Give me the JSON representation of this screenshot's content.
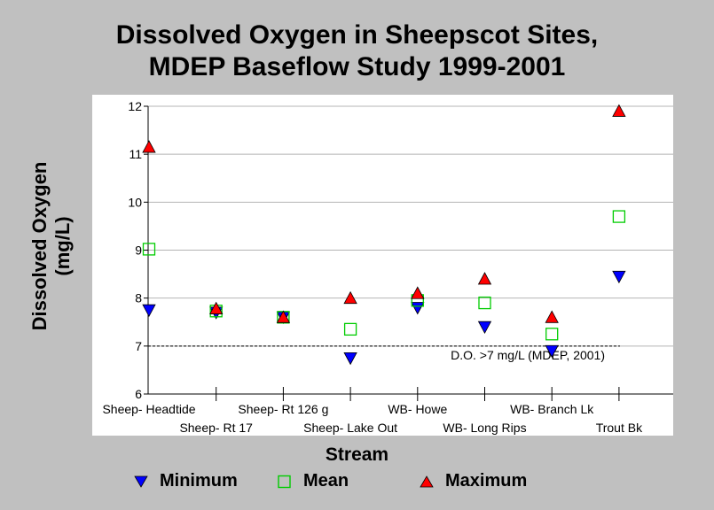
{
  "chart_data": {
    "type": "scatter",
    "title": [
      "Dissolved Oxygen in Sheepscot Sites,",
      "MDEP Baseflow Study 1999-2001"
    ],
    "ylabel": [
      "Dissolved Oxygen",
      "(mg/L)"
    ],
    "xlabel": "Stream",
    "categories": [
      "Sheep- Headtide",
      "Sheep- Rt 17",
      "Sheep- Rt 126 g",
      "Sheep- Lake Out",
      "WB- Howe",
      "WB- Long Rips",
      "WB- Branch Lk",
      "Trout Bk"
    ],
    "ylim": [
      6,
      12
    ],
    "yticks": [
      6,
      7,
      8,
      9,
      10,
      11,
      12
    ],
    "grid": true,
    "legend_position": "bottom",
    "series": [
      {
        "name": "Minimum",
        "marker": "triangle-down",
        "color": "#0000ff",
        "values": [
          7.75,
          7.7,
          7.6,
          6.75,
          7.8,
          7.4,
          6.9,
          8.45
        ]
      },
      {
        "name": "Mean",
        "marker": "square-open",
        "color": "#00cc00",
        "values": [
          9.02,
          7.73,
          7.6,
          7.35,
          7.95,
          7.9,
          7.25,
          9.7
        ]
      },
      {
        "name": "Maximum",
        "marker": "triangle-up",
        "color": "#ff0000",
        "values": [
          11.15,
          7.78,
          7.6,
          8.0,
          8.1,
          8.4,
          7.6,
          11.9
        ]
      }
    ],
    "reference_line": {
      "y": 7,
      "label": "D.O. >7 mg/L (MDEP, 2001)",
      "style": "dashed"
    }
  }
}
